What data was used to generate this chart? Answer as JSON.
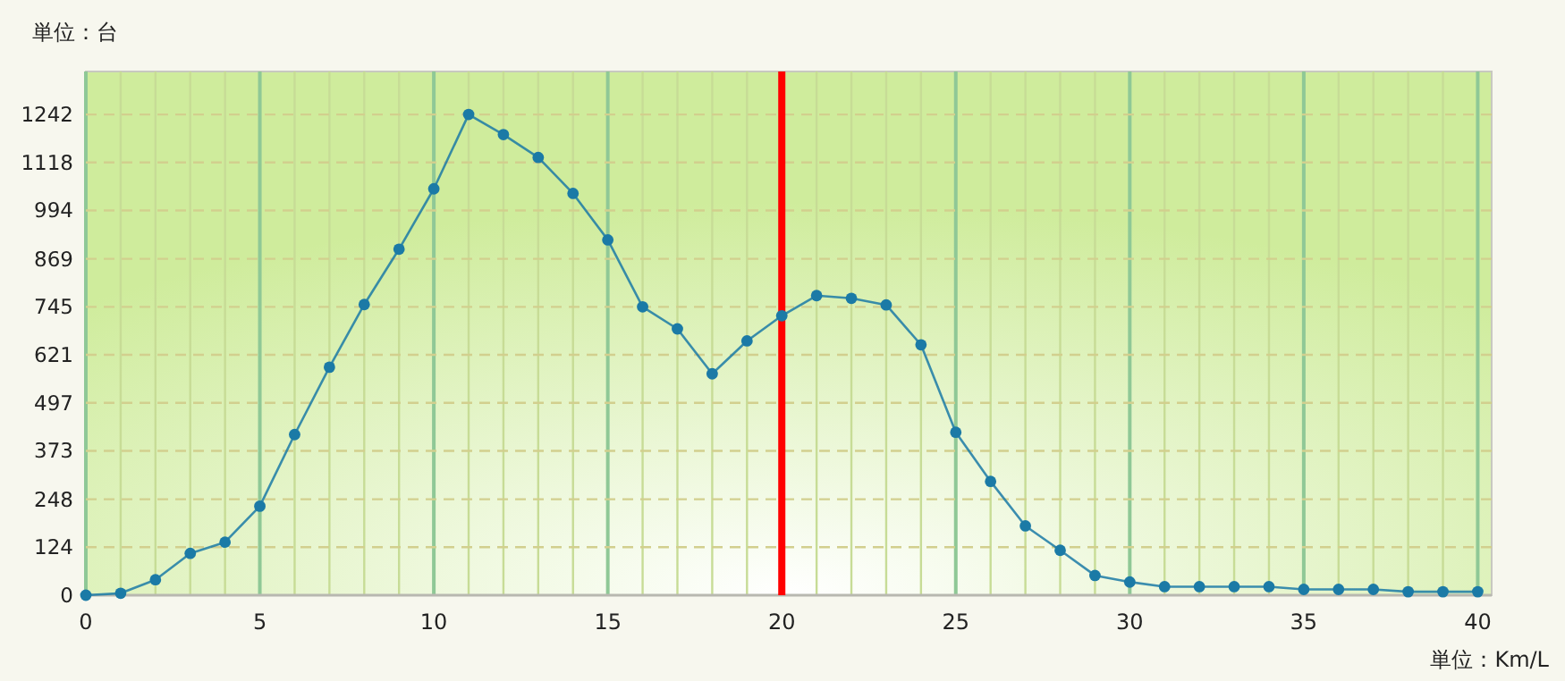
{
  "chart_data": {
    "type": "line",
    "xlabel": "単位：Km/L",
    "ylabel": "単位：台",
    "x": [
      0,
      1,
      2,
      3,
      4,
      5,
      6,
      7,
      8,
      9,
      10,
      11,
      12,
      13,
      14,
      15,
      16,
      17,
      18,
      19,
      20,
      21,
      22,
      23,
      24,
      25,
      26,
      27,
      28,
      29,
      30,
      31,
      32,
      33,
      34,
      35,
      36,
      37,
      38,
      39,
      40
    ],
    "series": [
      {
        "color": "#1b7aa6",
        "values": [
          0,
          5,
          40,
          108,
          137,
          230,
          415,
          589,
          751,
          894,
          1050,
          1242,
          1190,
          1131,
          1038,
          918,
          745,
          688,
          572,
          657,
          722,
          774,
          767,
          750,
          647,
          421,
          294,
          179,
          116,
          51,
          34,
          22,
          22,
          22,
          22,
          15,
          15,
          15,
          9,
          9,
          9
        ]
      }
    ],
    "xlim": [
      0,
      40.4
    ],
    "ylim": [
      0,
      1353
    ],
    "xticks": [
      0,
      {
        "value": 1,
        "label": null
      },
      {
        "value": 2,
        "label": null
      },
      {
        "value": 3,
        "label": null
      },
      {
        "value": 4,
        "label": null
      },
      5,
      {
        "value": 6,
        "label": null
      },
      {
        "value": 7,
        "label": null
      },
      {
        "value": 8,
        "label": null
      },
      {
        "value": 9,
        "label": null
      },
      10,
      {
        "value": 11,
        "label": null
      },
      {
        "value": 12,
        "label": null
      },
      {
        "value": 13,
        "label": null
      },
      {
        "value": 14,
        "label": null
      },
      15,
      {
        "value": 16,
        "label": null
      },
      {
        "value": 17,
        "label": null
      },
      {
        "value": 18,
        "label": null
      },
      {
        "value": 19,
        "label": null
      },
      20,
      {
        "value": 21,
        "label": null
      },
      {
        "value": 22,
        "label": null
      },
      {
        "value": 23,
        "label": null
      },
      {
        "value": 24,
        "label": null
      },
      25,
      {
        "value": 26,
        "label": null
      },
      {
        "value": 27,
        "label": null
      },
      {
        "value": 28,
        "label": null
      },
      {
        "value": 29,
        "label": null
      },
      30,
      {
        "value": 31,
        "label": null
      },
      {
        "value": 32,
        "label": null
      },
      {
        "value": 33,
        "label": null
      },
      {
        "value": 34,
        "label": null
      },
      35,
      {
        "value": 36,
        "label": null
      },
      {
        "value": 37,
        "label": null
      },
      {
        "value": 38,
        "label": null
      },
      {
        "value": 39,
        "label": null
      },
      40
    ],
    "yticks": [
      0,
      124,
      248,
      373,
      497,
      621,
      745,
      869,
      994,
      1118,
      1242
    ],
    "ref_lines": [
      {
        "axis": "x",
        "value": 20,
        "color": "#ff0000"
      }
    ],
    "grid": true,
    "marker": "circle",
    "line_style": "solid"
  }
}
